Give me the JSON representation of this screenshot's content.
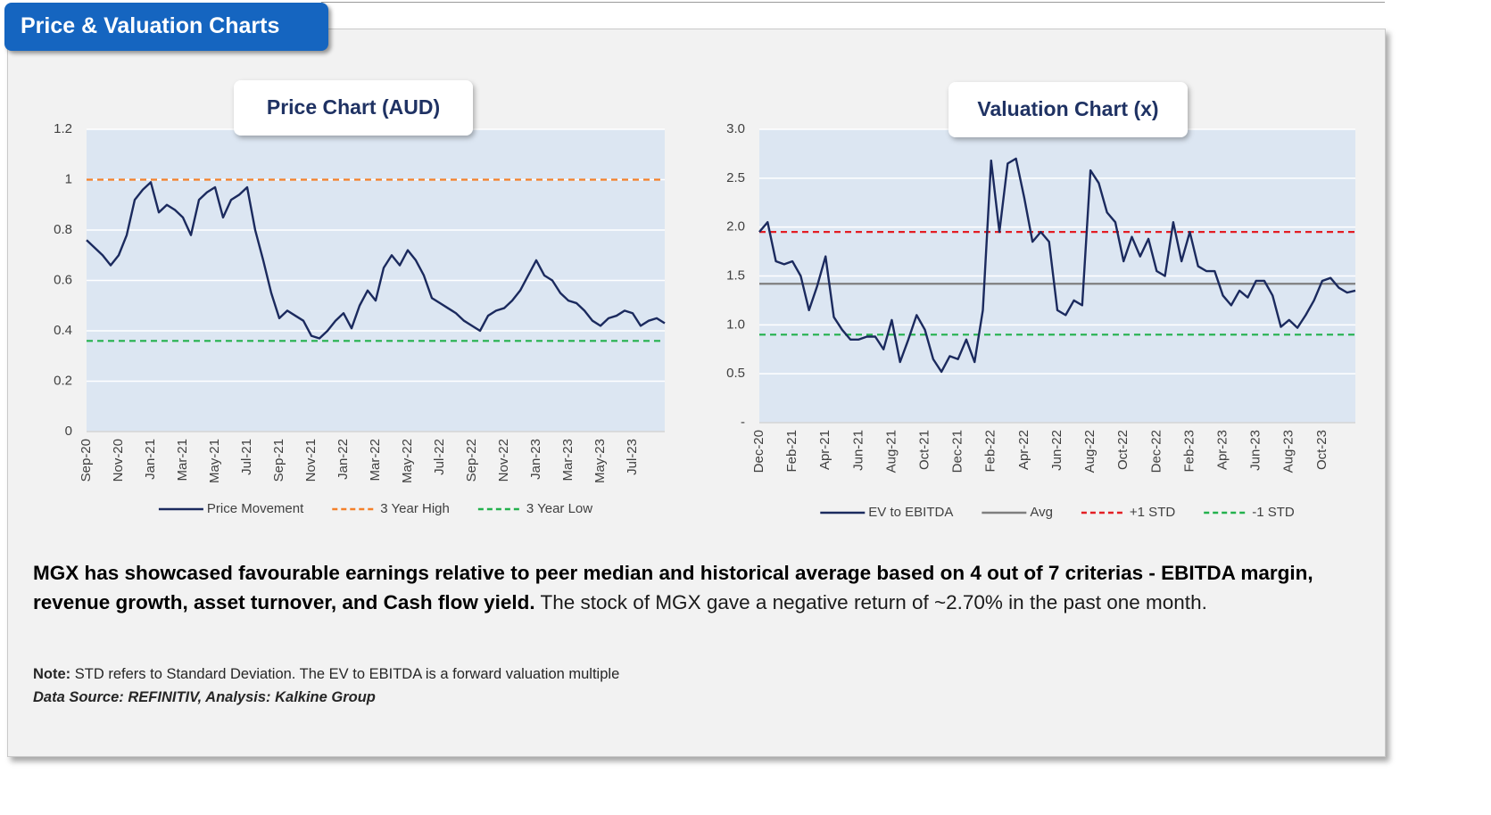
{
  "header": {
    "title": "Price & Valuation Charts"
  },
  "chart_data": [
    {
      "type": "line",
      "title": "Price Chart (AUD)",
      "categories": [
        "Sep-20",
        null,
        null,
        null,
        "Nov-20",
        null,
        null,
        null,
        "Jan-21",
        null,
        null,
        null,
        "Mar-21",
        null,
        null,
        null,
        "May-21",
        null,
        null,
        null,
        "Jul-21",
        null,
        null,
        null,
        "Sep-21",
        null,
        null,
        null,
        "Nov-21",
        null,
        null,
        null,
        "Jan-22",
        null,
        null,
        null,
        "Mar-22",
        null,
        null,
        null,
        "May-22",
        null,
        null,
        null,
        "Jul-22",
        null,
        null,
        null,
        "Sep-22",
        null,
        null,
        null,
        "Nov-22",
        null,
        null,
        null,
        "Jan-23",
        null,
        null,
        null,
        "Mar-23",
        null,
        null,
        null,
        "May-23",
        null,
        null,
        null,
        "Jul-23",
        null,
        null,
        null,
        null
      ],
      "series": [
        {
          "name": "Price Movement",
          "color": "#1b2a5e",
          "values": [
            0.76,
            0.73,
            0.7,
            0.66,
            0.7,
            0.78,
            0.92,
            0.96,
            0.99,
            0.87,
            0.9,
            0.88,
            0.85,
            0.78,
            0.92,
            0.95,
            0.97,
            0.85,
            0.92,
            0.94,
            0.97,
            0.8,
            0.68,
            0.55,
            0.45,
            0.48,
            0.46,
            0.44,
            0.38,
            0.37,
            0.4,
            0.44,
            0.47,
            0.41,
            0.5,
            0.56,
            0.52,
            0.65,
            0.7,
            0.66,
            0.72,
            0.68,
            0.62,
            0.53,
            0.51,
            0.49,
            0.47,
            0.44,
            0.42,
            0.4,
            0.46,
            0.48,
            0.49,
            0.52,
            0.56,
            0.62,
            0.68,
            0.62,
            0.6,
            0.55,
            0.52,
            0.51,
            0.48,
            0.44,
            0.42,
            0.45,
            0.46,
            0.48,
            0.47,
            0.42,
            0.44,
            0.45,
            0.43
          ]
        }
      ],
      "reference_lines": [
        {
          "name": "3 Year High",
          "value": 1,
          "color": "#f4802a",
          "dashed": true
        },
        {
          "name": "3 Year Low",
          "value": 0.36,
          "color": "#23b14d",
          "dashed": true
        }
      ],
      "ylim": [
        0,
        1.2
      ],
      "yticks": [
        0,
        0.2,
        0.4,
        0.6,
        0.8,
        1,
        1.2
      ],
      "grid": true,
      "plot_background": "#dce6f2",
      "legend": "bottom"
    },
    {
      "type": "line",
      "title": "Valuation Chart (x)",
      "categories": [
        "Dec-20",
        null,
        null,
        null,
        "Feb-21",
        null,
        null,
        null,
        "Apr-21",
        null,
        null,
        null,
        "Jun-21",
        null,
        null,
        null,
        "Aug-21",
        null,
        null,
        null,
        "Oct-21",
        null,
        null,
        null,
        "Dec-21",
        null,
        null,
        null,
        "Feb-22",
        null,
        null,
        null,
        "Apr-22",
        null,
        null,
        null,
        "Jun-22",
        null,
        null,
        null,
        "Aug-22",
        null,
        null,
        null,
        "Oct-22",
        null,
        null,
        null,
        "Dec-22",
        null,
        null,
        null,
        "Feb-23",
        null,
        null,
        null,
        "Apr-23",
        null,
        null,
        null,
        "Jun-23",
        null,
        null,
        null,
        "Aug-23",
        null,
        null,
        null,
        "Oct-23",
        null,
        null,
        null,
        null
      ],
      "series": [
        {
          "name": "EV to EBITDA",
          "color": "#1b2a5e",
          "values": [
            1.95,
            2.05,
            1.65,
            1.62,
            1.65,
            1.5,
            1.15,
            1.4,
            1.7,
            1.08,
            0.95,
            0.85,
            0.85,
            0.88,
            0.88,
            0.75,
            1.05,
            0.62,
            0.85,
            1.1,
            0.95,
            0.65,
            0.52,
            0.68,
            0.65,
            0.85,
            0.62,
            1.15,
            2.68,
            1.95,
            2.65,
            2.7,
            2.3,
            1.85,
            1.95,
            1.85,
            1.15,
            1.1,
            1.25,
            1.2,
            2.58,
            2.45,
            2.15,
            2.05,
            1.65,
            1.9,
            1.7,
            1.88,
            1.55,
            1.5,
            2.05,
            1.65,
            1.95,
            1.6,
            1.55,
            1.55,
            1.3,
            1.2,
            1.35,
            1.28,
            1.45,
            1.45,
            1.3,
            0.98,
            1.05,
            0.97,
            1.1,
            1.25,
            1.45,
            1.48,
            1.38,
            1.33,
            1.35
          ]
        }
      ],
      "reference_lines": [
        {
          "name": "Avg",
          "value": 1.42,
          "color": "#7f7f7f",
          "dashed": false
        },
        {
          "name": "+1 STD",
          "value": 1.95,
          "color": "#e31e24",
          "dashed": true
        },
        {
          "name": "-1 STD",
          "value": 0.9,
          "color": "#23b14d",
          "dashed": true
        }
      ],
      "ylim": [
        0,
        3
      ],
      "yticks": [
        {
          "value": 0,
          "label": "-"
        },
        0.5,
        {
          "value": 1,
          "label": "1.0"
        },
        1.5,
        {
          "value": 2,
          "label": "2.0"
        },
        2.5,
        {
          "value": 3,
          "label": "3.0"
        }
      ],
      "grid": true,
      "plot_background": "#dce6f2",
      "legend": "bottom"
    }
  ],
  "commentary": {
    "bold": "MGX has showcased favourable earnings relative to peer median and historical average based on 4 out of 7 criterias - EBITDA margin, revenue growth, asset turnover, and Cash flow yield.",
    "text": "The stock of MGX gave a negative return of ~2.70% in the past one month."
  },
  "note": {
    "label": "Note:",
    "text": "STD refers to Standard Deviation. The EV to EBITDA is a forward valuation multiple"
  },
  "source": "Data Source: REFINITIV, Analysis: Kalkine Group"
}
